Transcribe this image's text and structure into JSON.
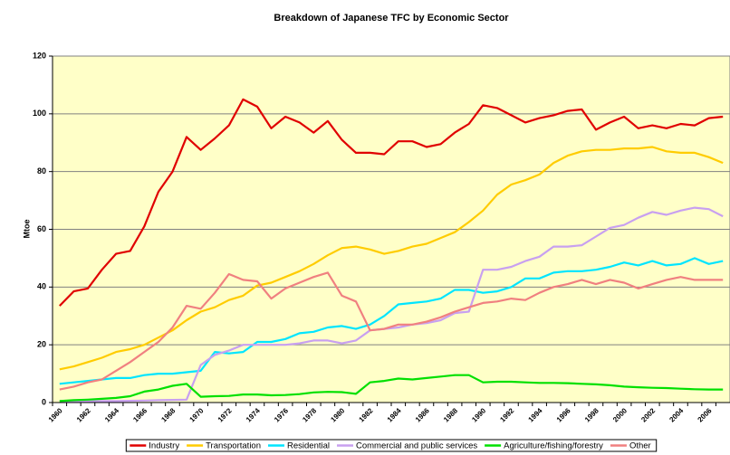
{
  "chart_data": {
    "type": "line",
    "title": "Breakdown of Japanese TFC by Economic Sector",
    "y_label": "Mtoe",
    "categories": [
      "1960",
      null,
      "1962",
      null,
      "1964",
      null,
      "1966",
      null,
      "1968",
      null,
      "1970",
      null,
      "1972",
      null,
      "1974",
      null,
      "1976",
      null,
      "1978",
      null,
      "1980",
      null,
      "1982",
      null,
      "1984",
      null,
      "1986",
      null,
      "1988",
      null,
      "1990",
      null,
      "1992",
      null,
      "1994",
      null,
      "1996",
      null,
      "1998",
      null,
      "2000",
      null,
      "2002",
      null,
      "2004",
      null,
      "2006",
      null
    ],
    "series": [
      {
        "name": "Industry",
        "color": "#e00000",
        "values": [
          33.5,
          38.5,
          39.5,
          46,
          51.5,
          52.5,
          61,
          73,
          80,
          92,
          87.5,
          91.5,
          96,
          105,
          102.5,
          95,
          99,
          97,
          93.5,
          97.5,
          91,
          86.5,
          86.5,
          86,
          90.5,
          90.5,
          88.5,
          89.5,
          93.5,
          96.5,
          103,
          102,
          99.5,
          97,
          98.5,
          99.5,
          101,
          101.5,
          94.5,
          97,
          99,
          95,
          96,
          95,
          96.5,
          96,
          98.5,
          99
        ]
      },
      {
        "name": "Transportation",
        "color": "#ffcc00",
        "values": [
          11.5,
          12.5,
          14,
          15.5,
          17.5,
          18.5,
          20,
          22.5,
          25,
          28.5,
          31.5,
          33,
          35.5,
          37,
          40.5,
          41.5,
          43.5,
          45.5,
          48,
          51,
          53.5,
          54,
          53,
          51.5,
          52.5,
          54,
          55,
          57,
          59,
          62.5,
          66.5,
          72,
          75.5,
          77,
          79,
          83,
          85.5,
          87,
          87.5,
          87.5,
          88,
          88,
          88.5,
          87,
          86.5,
          86.5,
          85,
          83
        ]
      },
      {
        "name": "Residential",
        "color": "#00e5ff",
        "values": [
          6.5,
          7,
          7.5,
          8,
          8.5,
          8.5,
          9.5,
          10,
          10,
          10.5,
          11,
          17.5,
          17,
          17.5,
          21,
          21,
          22,
          24,
          24.5,
          26,
          26.5,
          25.5,
          27,
          30,
          34,
          34.5,
          35,
          36,
          39,
          39,
          38,
          38.5,
          40,
          43,
          43,
          45,
          45.5,
          45.5,
          46,
          47,
          48.5,
          47.5,
          49,
          47.5,
          48,
          50,
          48,
          49
        ]
      },
      {
        "name": "Commercial and public services",
        "color": "#c8a0f0",
        "values": [
          0.5,
          0.5,
          0.5,
          0.5,
          0.5,
          0.6,
          0.7,
          0.8,
          0.9,
          1,
          13,
          16.5,
          18,
          20,
          20,
          20,
          20,
          20.5,
          21.5,
          21.5,
          20.5,
          21.5,
          25,
          25.5,
          26,
          27,
          27.5,
          28.5,
          31,
          31.5,
          46,
          46,
          47,
          49,
          50.5,
          54,
          54,
          54.5,
          57.5,
          60.5,
          61.5,
          64,
          66,
          65,
          66.5,
          67.5,
          67,
          64.5
        ]
      },
      {
        "name": "Agriculture/fishing/forestry",
        "color": "#00e000",
        "values": [
          0.5,
          0.8,
          1,
          1.3,
          1.6,
          2.2,
          3.8,
          4.5,
          5.8,
          6.5,
          2,
          2.2,
          2.3,
          2.8,
          2.8,
          2.5,
          2.6,
          2.9,
          3.5,
          3.7,
          3.6,
          3,
          7,
          7.5,
          8.3,
          8,
          8.5,
          9,
          9.5,
          9.5,
          7,
          7.2,
          7.2,
          7,
          6.8,
          6.8,
          6.7,
          6.5,
          6.3,
          6,
          5.5,
          5.3,
          5.1,
          5,
          4.8,
          4.6,
          4.5,
          4.5
        ]
      },
      {
        "name": "Other",
        "color": "#f08080",
        "values": [
          4.5,
          5.5,
          7,
          8,
          11,
          14,
          17.5,
          21,
          26,
          33.5,
          32.5,
          38,
          44.5,
          42.5,
          42,
          36,
          39.5,
          41.5,
          43.5,
          45,
          37,
          35,
          25,
          25.5,
          27,
          27,
          28,
          29.5,
          31.5,
          33,
          34.5,
          35,
          36,
          35.5,
          38,
          40,
          41,
          42.5,
          41,
          42.5,
          41.5,
          39.5,
          41,
          42.5,
          43.5,
          42.5,
          42.5,
          42.5
        ]
      }
    ],
    "ylim": [
      0,
      120
    ],
    "yticks": [
      0,
      20,
      40,
      60,
      80,
      100,
      120
    ],
    "grid": true,
    "legend": "bottom",
    "plot_background": "#ffffc8"
  }
}
